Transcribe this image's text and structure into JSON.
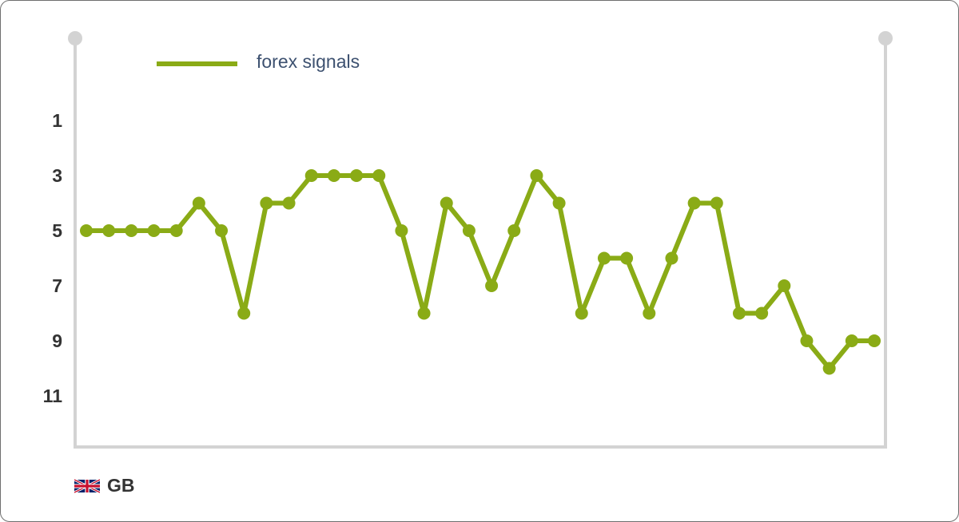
{
  "chart_data": {
    "type": "line",
    "y_inverted": true,
    "ylim": [
      13,
      -1
    ],
    "y_ticks": [
      1,
      3,
      5,
      7,
      9,
      11
    ],
    "grid": false,
    "legend_position": "top-left",
    "series": [
      {
        "name": "forex signals",
        "color": "#8aab16",
        "values": [
          5,
          5,
          5,
          5,
          5,
          4,
          5,
          8,
          4,
          4,
          3,
          3,
          3,
          3,
          5,
          8,
          4,
          5,
          7,
          5,
          3,
          4,
          8,
          6,
          6,
          8,
          6,
          4,
          4,
          8,
          8,
          7,
          9,
          10,
          9,
          9
        ]
      }
    ]
  },
  "region": {
    "label": "GB",
    "flag_icon": "uk-flag-icon"
  },
  "colors": {
    "axis": "#d3d3d3",
    "series": "#8aab16",
    "tick_text": "#333333",
    "legend_text": "#3d5170"
  }
}
